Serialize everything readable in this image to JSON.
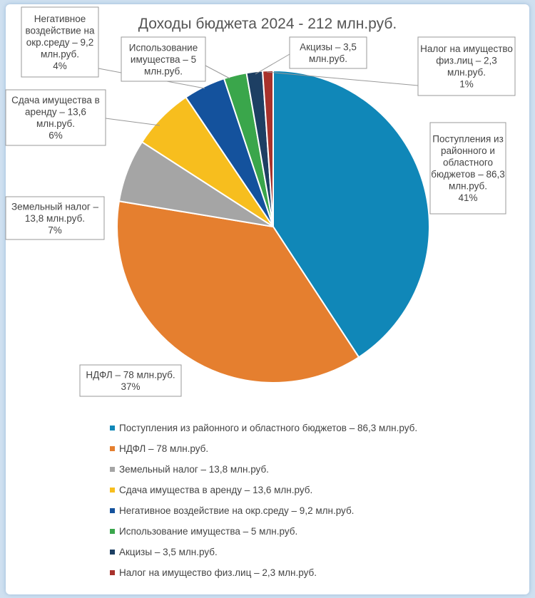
{
  "chart_data": {
    "type": "pie",
    "title": "Доходы бюджета 2024 - 212 млн.руб.",
    "slices": [
      {
        "label": "Поступления из районного и областного бюджетов – 86,3 млн.руб.",
        "value": 86.3,
        "percent": "41%",
        "color": "#1087b8",
        "callout": [
          "Поступления из",
          "районного и",
          "областного",
          "бюджетов – 86,3",
          "млн.руб.",
          "41%"
        ]
      },
      {
        "label": "НДФЛ – 78 млн.руб.",
        "value": 78,
        "percent": "37%",
        "color": "#e57f2f",
        "callout": [
          "НДФЛ – 78 млн.руб.",
          "37%"
        ]
      },
      {
        "label": "Земельный налог – 13,8 млн.руб.",
        "value": 13.8,
        "percent": "7%",
        "color": "#a5a5a5",
        "callout": [
          "Земельный налог –",
          "13,8 млн.руб.",
          "7%"
        ]
      },
      {
        "label": "Сдача имущества в аренду – 13,6 млн.руб.",
        "value": 13.6,
        "percent": "6%",
        "color": "#f7be1e",
        "callout": [
          "Сдача имущества в",
          "аренду – 13,6",
          "млн.руб.",
          "6%"
        ]
      },
      {
        "label": "Негативное воздействие на окр.среду – 9,2 млн.руб.",
        "value": 9.2,
        "percent": "4%",
        "color": "#14529d",
        "callout": [
          "Негативное",
          "воздействие на",
          "окр.среду – 9,2",
          "млн.руб.",
          "4%"
        ]
      },
      {
        "label": "Использование имущества – 5 млн.руб.",
        "value": 5,
        "percent": "",
        "color": "#3aa64b",
        "callout": [
          "Использование",
          "имущества – 5",
          "млн.руб."
        ]
      },
      {
        "label": "Акцизы – 3,5 млн.руб.",
        "value": 3.5,
        "percent": "",
        "color": "#1d3f63",
        "callout": [
          "Акцизы – 3,5",
          "млн.руб."
        ]
      },
      {
        "label": "Налог на имущество физ.лиц – 2,3 млн.руб.",
        "value": 2.3,
        "percent": "1%",
        "color": "#a8322c",
        "callout": [
          "Налог на имущество",
          "физ.лиц – 2,3",
          "млн.руб.",
          "1%"
        ]
      }
    ],
    "legend_position": "bottom"
  }
}
